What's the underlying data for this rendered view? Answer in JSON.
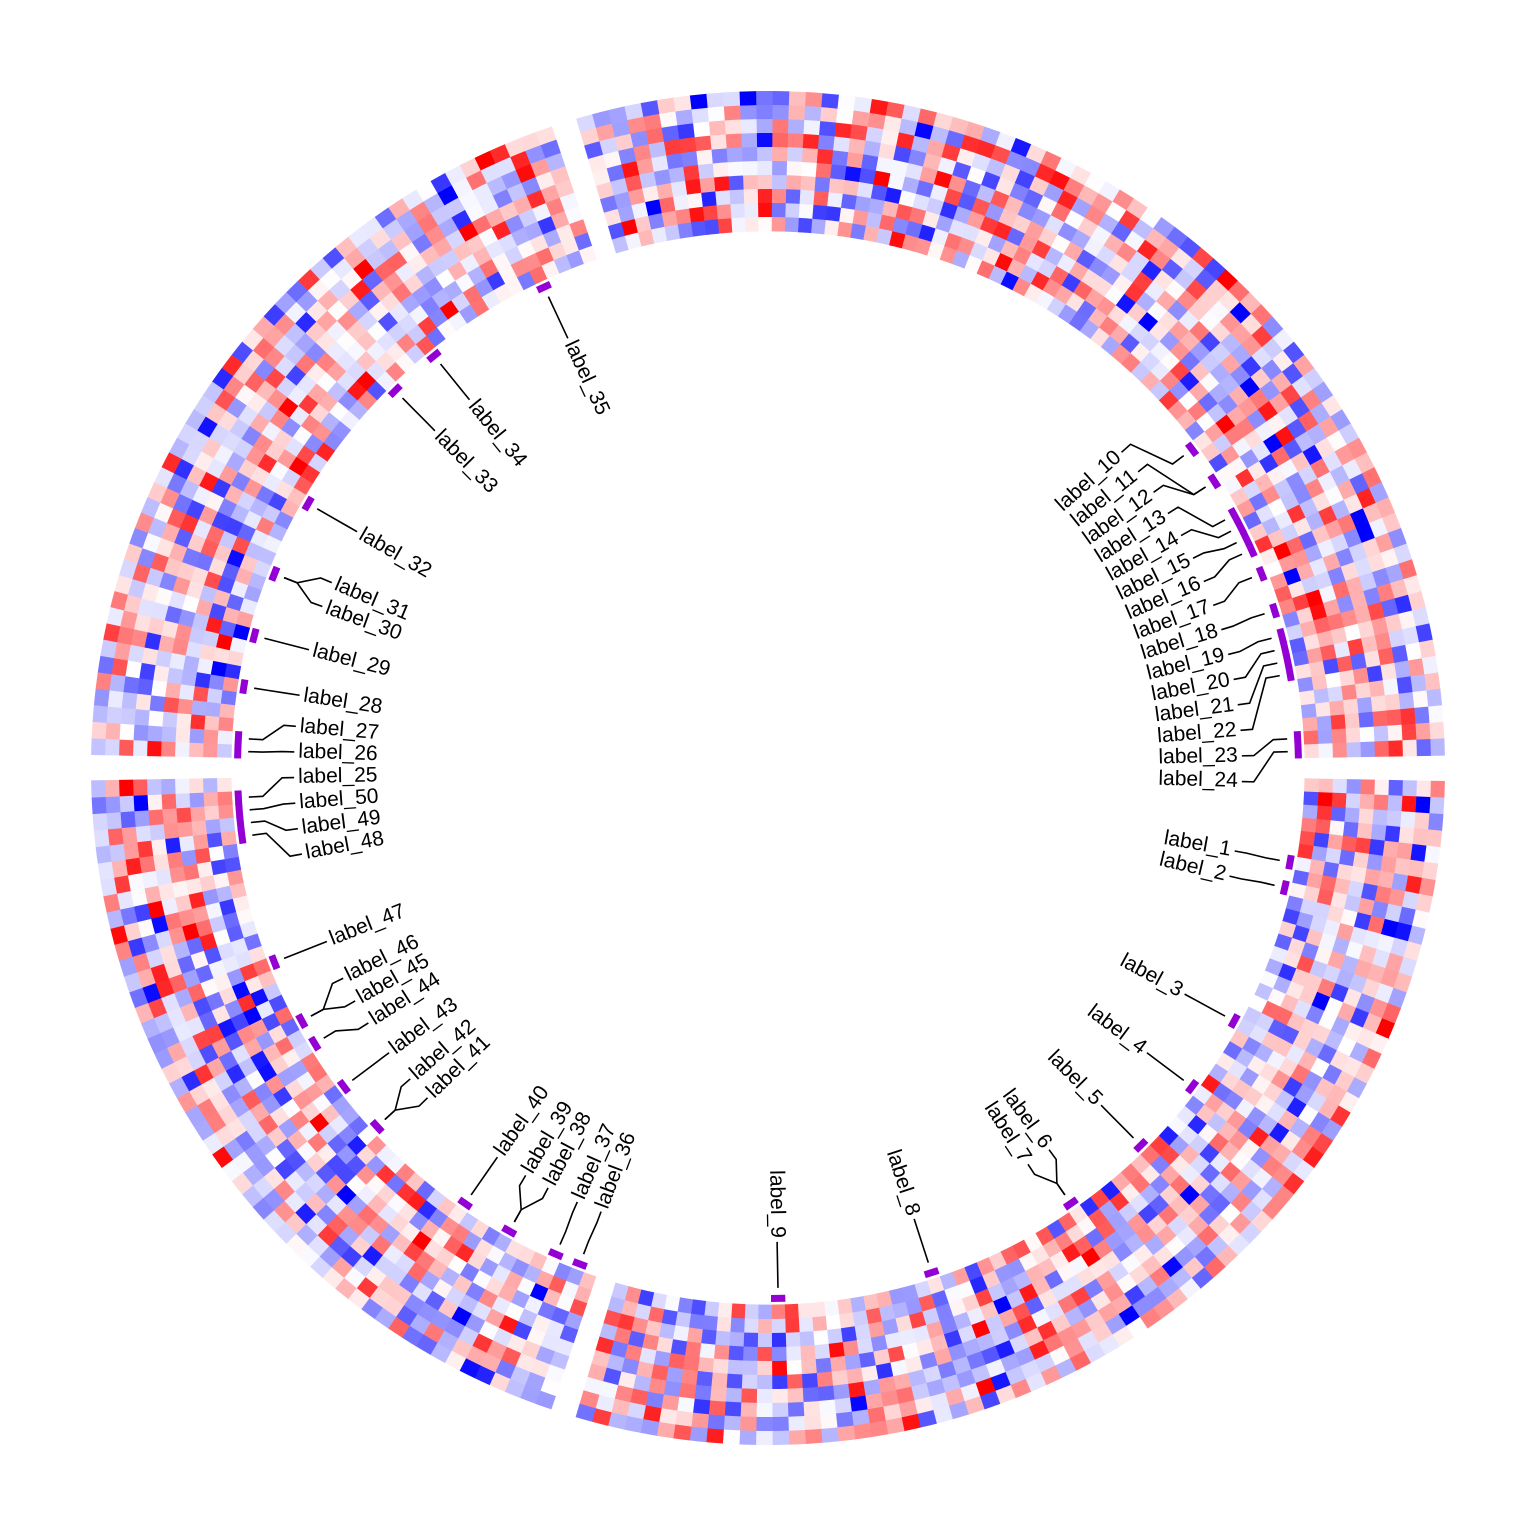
{
  "chart_data": {
    "type": "heatmap",
    "layout": "circular",
    "title": "",
    "color_scale": {
      "low": "#0000ff",
      "mid": "#ffffff",
      "high": "#ff0000"
    },
    "marker_color": "#9400d3",
    "link_color": "#000000",
    "sectors": [
      {
        "columns": 75,
        "rows": 10
      },
      {
        "columns": 50,
        "rows": 10
      },
      {
        "columns": 50,
        "rows": 10
      },
      {
        "columns": 75,
        "rows": 10
      }
    ],
    "labels": [
      {
        "text": "label_1",
        "sector": 0,
        "col": 6
      },
      {
        "text": "label_2",
        "sector": 0,
        "col": 8
      },
      {
        "text": "label_3",
        "sector": 0,
        "col": 19
      },
      {
        "text": "label_4",
        "sector": 0,
        "col": 25
      },
      {
        "text": "label_5",
        "sector": 0,
        "col": 31
      },
      {
        "text": "label_6",
        "sector": 0,
        "col": 38
      },
      {
        "text": "label_7",
        "sector": 0,
        "col": 38
      },
      {
        "text": "label_8",
        "sector": 0,
        "col": 50
      },
      {
        "text": "label_9",
        "sector": 0,
        "col": 62
      },
      {
        "text": "label_10",
        "sector": 3,
        "col": 49
      },
      {
        "text": "label_11",
        "sector": 3,
        "col": 52
      },
      {
        "text": "label_12",
        "sector": 3,
        "col": 52
      },
      {
        "text": "label_13",
        "sector": 3,
        "col": 55
      },
      {
        "text": "label_14",
        "sector": 3,
        "col": 56
      },
      {
        "text": "label_15",
        "sector": 3,
        "col": 57
      },
      {
        "text": "label_16",
        "sector": 3,
        "col": 58
      },
      {
        "text": "label_17",
        "sector": 3,
        "col": 60
      },
      {
        "text": "label_18",
        "sector": 3,
        "col": 63
      },
      {
        "text": "label_19",
        "sector": 3,
        "col": 65
      },
      {
        "text": "label_20",
        "sector": 3,
        "col": 66
      },
      {
        "text": "label_21",
        "sector": 3,
        "col": 67
      },
      {
        "text": "label_22",
        "sector": 3,
        "col": 68
      },
      {
        "text": "label_23",
        "sector": 3,
        "col": 73
      },
      {
        "text": "label_24",
        "sector": 3,
        "col": 74
      },
      {
        "text": "label_25",
        "sector": 1,
        "col": 48
      },
      {
        "text": "label_26",
        "sector": 2,
        "col": 0
      },
      {
        "text": "label_27",
        "sector": 2,
        "col": 1
      },
      {
        "text": "label_28",
        "sector": 2,
        "col": 5
      },
      {
        "text": "label_29",
        "sector": 2,
        "col": 9
      },
      {
        "text": "label_30",
        "sector": 2,
        "col": 14
      },
      {
        "text": "label_31",
        "sector": 2,
        "col": 14
      },
      {
        "text": "label_32",
        "sector": 2,
        "col": 20
      },
      {
        "text": "label_33",
        "sector": 2,
        "col": 31
      },
      {
        "text": "label_34",
        "sector": 2,
        "col": 35
      },
      {
        "text": "label_35",
        "sector": 2,
        "col": 45
      },
      {
        "text": "label_36",
        "sector": 1,
        "col": 1
      },
      {
        "text": "label_37",
        "sector": 1,
        "col": 3
      },
      {
        "text": "label_38",
        "sector": 1,
        "col": 7
      },
      {
        "text": "label_39",
        "sector": 1,
        "col": 7
      },
      {
        "text": "label_40",
        "sector": 1,
        "col": 11
      },
      {
        "text": "label_41",
        "sector": 1,
        "col": 20
      },
      {
        "text": "label_42",
        "sector": 1,
        "col": 20
      },
      {
        "text": "label_43",
        "sector": 1,
        "col": 24
      },
      {
        "text": "label_44",
        "sector": 1,
        "col": 28
      },
      {
        "text": "label_45",
        "sector": 1,
        "col": 30
      },
      {
        "text": "label_46",
        "sector": 1,
        "col": 30
      },
      {
        "text": "label_47",
        "sector": 1,
        "col": 35
      },
      {
        "text": "label_48",
        "sector": 1,
        "col": 45
      },
      {
        "text": "label_49",
        "sector": 1,
        "col": 46
      },
      {
        "text": "label_50",
        "sector": 1,
        "col": 47
      }
    ]
  }
}
